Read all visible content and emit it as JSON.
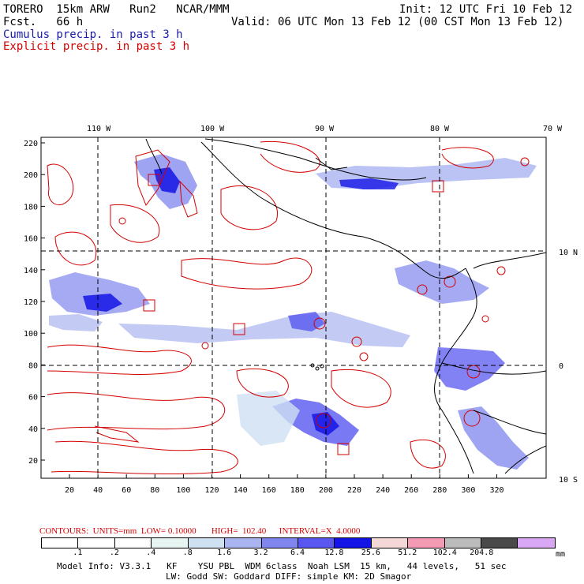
{
  "header": {
    "model": "TORERO  15km ARW   Run2   NCAR/MMM",
    "init": "Init: 12 UTC Fri 10 Feb 12",
    "fcst": "Fcst.   66 h",
    "valid": "Valid: 06 UTC Mon 13 Feb 12 (00 CST Mon 13 Feb 12)",
    "cumulus_label": "Cumulus precip. in past 3 h",
    "explicit_label": "Explicit precip. in past 3 h"
  },
  "colors": {
    "cumulus": "#1a1aa6",
    "explicit": "#d40000",
    "grid": "#000000"
  },
  "map": {
    "top_lon_labels": [
      "110 W",
      "100 W",
      "90 W",
      "80 W",
      "70 W"
    ],
    "right_lat_labels": [
      "10 N",
      "0",
      "10 S"
    ],
    "y_ticks": [
      "220",
      "200",
      "180",
      "160",
      "140",
      "120",
      "100",
      "80",
      "60",
      "40",
      "20"
    ],
    "x_ticks": [
      "20",
      "40",
      "60",
      "80",
      "100",
      "120",
      "140",
      "160",
      "180",
      "200",
      "220",
      "240",
      "260",
      "280",
      "300",
      "320"
    ],
    "precip_features": [
      {
        "name": "precip-cluster-nw-mexico",
        "type": "cumulus"
      },
      {
        "name": "precip-cluster-west-mid",
        "type": "cumulus"
      },
      {
        "name": "precip-cluster-central-band",
        "type": "cumulus"
      },
      {
        "name": "precip-cluster-south-vortex",
        "type": "cumulus"
      },
      {
        "name": "precip-cluster-colombia",
        "type": "cumulus"
      },
      {
        "name": "precip-cluster-peru",
        "type": "cumulus"
      }
    ]
  },
  "legend": {
    "contour_info": "CONTOURS:  UNITS=mm  LOW= 0.10000       HIGH=  102.40      INTERVAL=X  4.0000",
    "unit": "mm",
    "colorbar_colors": [
      "#ffffff",
      "#ffffff",
      "#ffffff",
      "#e6f4f2",
      "#cfe0f2",
      "#a9b4f0",
      "#7f86ee",
      "#5858f0",
      "#1414e6",
      "#f4d8d8",
      "#f49ab4",
      "#bcbcbc",
      "#4a4a4a",
      "#d8a8f4"
    ],
    "colorbar_labels": [
      ".1",
      ".2",
      ".4",
      ".8",
      "1.6",
      "3.2",
      "6.4",
      "12.8",
      "25.6",
      "51.2",
      "102.4",
      "204.8"
    ]
  },
  "footer": {
    "line1": "Model Info: V3.3.1   KF    YSU PBL  WDM 6class  Noah LSM  15 km,   44 levels,   51 sec",
    "line2": "LW: Godd SW: Goddard DIFF: simple KM: 2D Smagor"
  }
}
